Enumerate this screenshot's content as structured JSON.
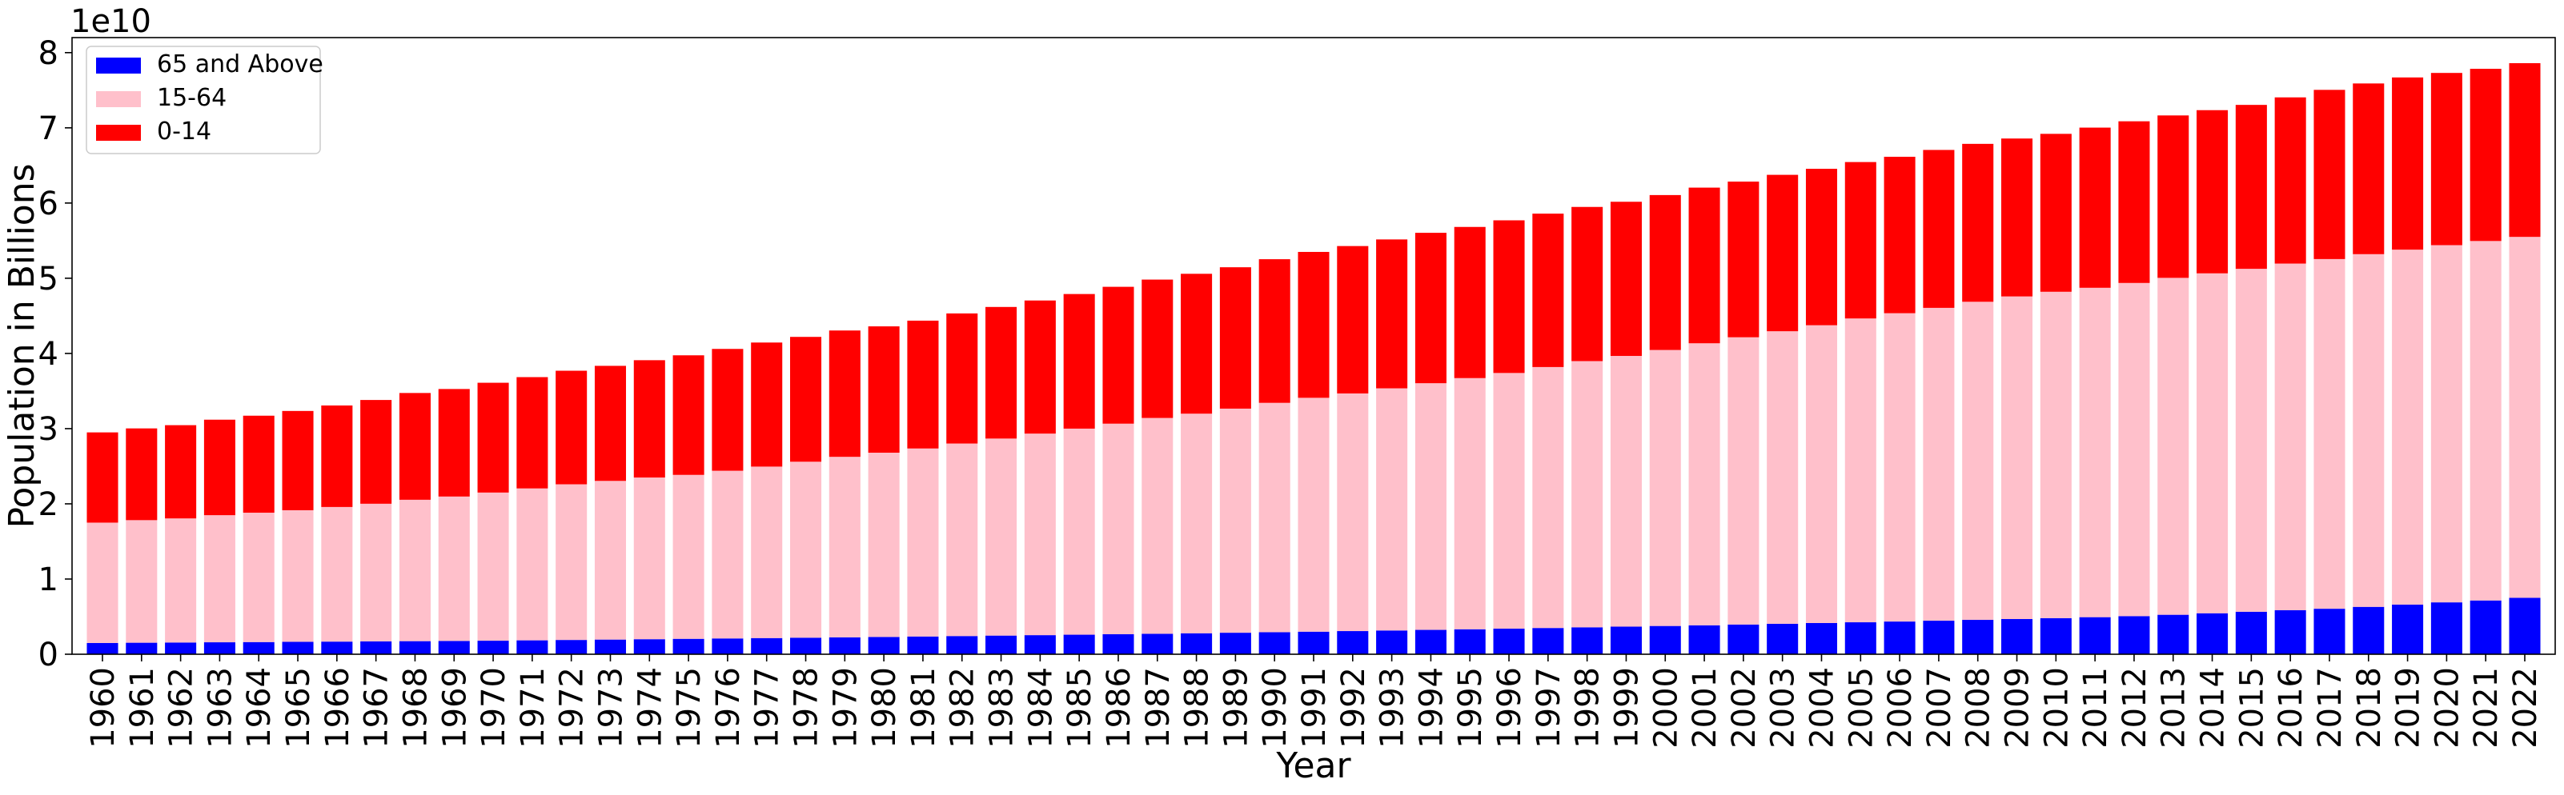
{
  "chart_data": {
    "type": "bar",
    "stacked": true,
    "xlabel": "Year",
    "ylabel": "Population in Billions",
    "offset_text": "1e10",
    "ylim": [
      0,
      82000000000
    ],
    "yticks": [
      0,
      10000000000,
      20000000000,
      30000000000,
      40000000000,
      50000000000,
      60000000000,
      70000000000,
      80000000000
    ],
    "ytick_labels": [
      "0",
      "1",
      "2",
      "3",
      "4",
      "5",
      "6",
      "7",
      "8"
    ],
    "grid": false,
    "legend_position": "upper-left",
    "categories": [
      "1960",
      "1961",
      "1962",
      "1963",
      "1964",
      "1965",
      "1966",
      "1967",
      "1968",
      "1969",
      "1970",
      "1971",
      "1972",
      "1973",
      "1974",
      "1975",
      "1976",
      "1977",
      "1978",
      "1979",
      "1980",
      "1981",
      "1982",
      "1983",
      "1984",
      "1985",
      "1986",
      "1987",
      "1988",
      "1989",
      "1990",
      "1991",
      "1992",
      "1993",
      "1994",
      "1995",
      "1996",
      "1997",
      "1998",
      "1999",
      "2000",
      "2001",
      "2002",
      "2003",
      "2004",
      "2005",
      "2006",
      "2007",
      "2008",
      "2009",
      "2010",
      "2011",
      "2012",
      "2013",
      "2014",
      "2015",
      "2016",
      "2017",
      "2018",
      "2019",
      "2020",
      "2021",
      "2022"
    ],
    "series": [
      {
        "name": "65 and Above",
        "color": "#0000ff",
        "values": [
          1500000000,
          1530000000,
          1560000000,
          1590000000,
          1620000000,
          1650000000,
          1680000000,
          1710000000,
          1740000000,
          1770000000,
          1800000000,
          1850000000,
          1900000000,
          1950000000,
          2000000000,
          2050000000,
          2100000000,
          2150000000,
          2200000000,
          2250000000,
          2300000000,
          2360000000,
          2420000000,
          2480000000,
          2540000000,
          2600000000,
          2660000000,
          2720000000,
          2790000000,
          2860000000,
          2930000000,
          3000000000,
          3080000000,
          3160000000,
          3240000000,
          3320000000,
          3400000000,
          3490000000,
          3580000000,
          3670000000,
          3760000000,
          3850000000,
          3950000000,
          4050000000,
          4150000000,
          4250000000,
          4350000000,
          4460000000,
          4570000000,
          4680000000,
          4800000000,
          4930000000,
          5070000000,
          5250000000,
          5450000000,
          5650000000,
          5850000000,
          6050000000,
          6300000000,
          6600000000,
          6900000000,
          7150000000,
          7500000000
        ]
      },
      {
        "name": "15-64",
        "color": "#ffc0cb",
        "values": [
          16000000000,
          16300000000,
          16500000000,
          16900000000,
          17200000000,
          17500000000,
          17900000000,
          18300000000,
          18800000000,
          19200000000,
          19700000000,
          20200000000,
          20700000000,
          21100000000,
          21500000000,
          21800000000,
          22300000000,
          22800000000,
          23400000000,
          24000000000,
          24500000000,
          25000000000,
          25600000000,
          26200000000,
          26800000000,
          27400000000,
          28000000000,
          28700000000,
          29200000000,
          29800000000,
          30500000000,
          31100000000,
          31600000000,
          32200000000,
          32800000000,
          33400000000,
          34000000000,
          34700000000,
          35400000000,
          36000000000,
          36700000000,
          37500000000,
          38200000000,
          38900000000,
          39600000000,
          40400000000,
          41000000000,
          41600000000,
          42300000000,
          42900000000,
          43400000000,
          43800000000,
          44300000000,
          44800000000,
          45200000000,
          45600000000,
          46100000000,
          46500000000,
          46900000000,
          47200000000,
          47500000000,
          47800000000,
          48000000000
        ]
      },
      {
        "name": "0-14",
        "color": "#ff0000",
        "values": [
          12000000000,
          12200000000,
          12400000000,
          12700000000,
          12900000000,
          13200000000,
          13500000000,
          13800000000,
          14200000000,
          14300000000,
          14600000000,
          14800000000,
          15100000000,
          15300000000,
          15600000000,
          15900000000,
          16200000000,
          16500000000,
          16600000000,
          16800000000,
          16800000000,
          17000000000,
          17300000000,
          17500000000,
          17700000000,
          17900000000,
          18200000000,
          18400000000,
          18600000000,
          18800000000,
          19100000000,
          19400000000,
          19600000000,
          19800000000,
          20000000000,
          20100000000,
          20300000000,
          20400000000,
          20500000000,
          20500000000,
          20600000000,
          20700000000,
          20700000000,
          20800000000,
          20800000000,
          20800000000,
          20800000000,
          21000000000,
          21000000000,
          21000000000,
          21000000000,
          21300000000,
          21500000000,
          21600000000,
          21700000000,
          21800000000,
          22100000000,
          22500000000,
          22700000000,
          22900000000,
          22900000000,
          22900000000,
          23100000000
        ]
      }
    ]
  }
}
